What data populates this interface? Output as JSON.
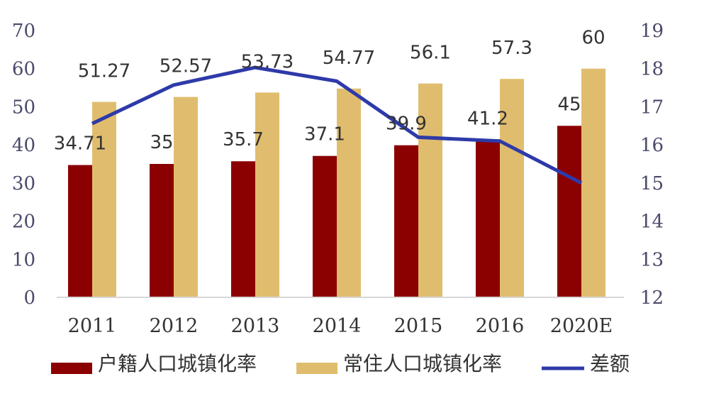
{
  "chart_data": {
    "type": "bar",
    "categories": [
      "2011",
      "2012",
      "2013",
      "2014",
      "2015",
      "2016",
      "2020E"
    ],
    "series": [
      {
        "name": "户籍人口城镇化率",
        "type": "bar",
        "axis": "left",
        "color": "#8b0000",
        "values": [
          34.71,
          35,
          35.7,
          37.1,
          39.9,
          41.2,
          45
        ]
      },
      {
        "name": "常住人口城镇化率",
        "type": "bar",
        "axis": "left",
        "color": "#e0bd6e",
        "values": [
          51.27,
          52.57,
          53.73,
          54.77,
          56.1,
          57.3,
          60
        ]
      },
      {
        "name": "差额",
        "type": "line",
        "axis": "right",
        "color": "#2e3aa8",
        "values": [
          16.56,
          17.57,
          18.03,
          17.67,
          16.2,
          16.1,
          15.0
        ]
      }
    ],
    "data_labels": {
      "bar1": [
        "34.71",
        "35",
        "35.7",
        "37.1",
        "39.9",
        "41.2",
        "45"
      ],
      "bar2": [
        "51.27",
        "52.57",
        "53.73",
        "54.77",
        "56.1",
        "57.3",
        "60"
      ]
    },
    "y_left": {
      "min": 0,
      "max": 70,
      "ticks": [
        "0",
        "10",
        "20",
        "30",
        "40",
        "50",
        "60",
        "70"
      ]
    },
    "y_right": {
      "min": 12,
      "max": 19,
      "ticks": [
        "12",
        "13",
        "14",
        "15",
        "16",
        "17",
        "18",
        "19"
      ]
    },
    "grid": false,
    "legend_position": "bottom"
  }
}
